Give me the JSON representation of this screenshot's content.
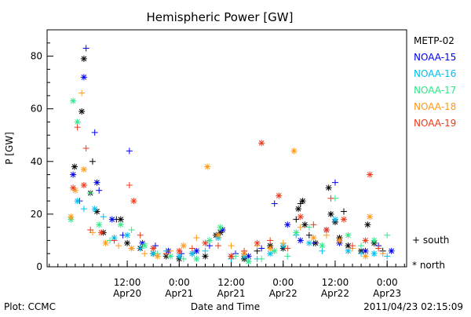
{
  "chart_data": {
    "type": "scatter",
    "title": "Hemispheric Power [GW]",
    "xlabel": "Date and Time",
    "ylabel": "P [GW]",
    "xlim": [
      "2011-04-19T17:30",
      "2011-04-23T04:30"
    ],
    "ylim": [
      0,
      90
    ],
    "y_ticks": [
      0,
      20,
      40,
      60,
      80
    ],
    "x_ticks": [
      {
        "t": "2011-04-20T12:00",
        "time": "12:00",
        "date": "Apr20"
      },
      {
        "t": "2011-04-21T00:00",
        "time": "0:00",
        "date": "Apr21"
      },
      {
        "t": "2011-04-21T12:00",
        "time": "12:00",
        "date": "Apr21"
      },
      {
        "t": "2011-04-22T00:00",
        "time": "0:00",
        "date": "Apr22"
      },
      {
        "t": "2011-04-22T12:00",
        "time": "12:00",
        "date": "Apr22"
      },
      {
        "t": "2011-04-23T00:00",
        "time": "0:00",
        "date": "Apr23"
      }
    ],
    "grid": false,
    "legend_position": "right",
    "marker_legend": {
      "south": "+ south",
      "north": "* north"
    },
    "series": [
      {
        "name": "METP-02",
        "color": "#000000",
        "points": [
          [
            "2011-04-20T02:00",
            79,
            "north"
          ],
          [
            "2011-04-20T01:30",
            59,
            "north"
          ],
          [
            "2011-04-19T23:50",
            38,
            "north"
          ],
          [
            "2011-04-20T04:00",
            40,
            "south"
          ],
          [
            "2011-04-20T03:30",
            28,
            "north"
          ],
          [
            "2011-04-20T05:00",
            21,
            "north"
          ],
          [
            "2011-04-20T06:30",
            13,
            "north"
          ],
          [
            "2011-04-20T09:30",
            18,
            "south"
          ],
          [
            "2011-04-20T10:30",
            18,
            "north"
          ],
          [
            "2011-04-20T12:00",
            9,
            "north"
          ],
          [
            "2011-04-20T15:00",
            7,
            "north"
          ],
          [
            "2011-04-20T18:00",
            5,
            "north"
          ],
          [
            "2011-04-20T21:00",
            4,
            "north"
          ],
          [
            "2011-04-21T00:00",
            3,
            "north"
          ],
          [
            "2011-04-21T03:00",
            5,
            "south"
          ],
          [
            "2011-04-21T06:00",
            4,
            "north"
          ],
          [
            "2011-04-21T08:30",
            12,
            "north"
          ],
          [
            "2011-04-21T09:30",
            13,
            "north"
          ],
          [
            "2011-04-21T10:00",
            14,
            "south"
          ],
          [
            "2011-04-21T12:00",
            4,
            "north"
          ],
          [
            "2011-04-21T15:00",
            3,
            "north"
          ],
          [
            "2011-04-21T18:00",
            6,
            "south"
          ],
          [
            "2011-04-21T21:00",
            8,
            "north"
          ],
          [
            "2011-04-22T00:00",
            7,
            "north"
          ],
          [
            "2011-04-22T03:00",
            18,
            "south"
          ],
          [
            "2011-04-22T03:30",
            22,
            "north"
          ],
          [
            "2011-04-22T04:00",
            24,
            "south"
          ],
          [
            "2011-04-22T04:30",
            25,
            "north"
          ],
          [
            "2011-04-22T05:00",
            16,
            "north"
          ],
          [
            "2011-04-22T06:00",
            12,
            "south"
          ],
          [
            "2011-04-22T07:30",
            9,
            "north"
          ],
          [
            "2011-04-22T10:30",
            30,
            "north"
          ],
          [
            "2011-04-22T11:00",
            20,
            "north"
          ],
          [
            "2011-04-22T12:00",
            17,
            "north"
          ],
          [
            "2011-04-22T14:00",
            21,
            "south"
          ],
          [
            "2011-04-22T13:00",
            11,
            "north"
          ],
          [
            "2011-04-22T15:00",
            8,
            "north"
          ],
          [
            "2011-04-22T18:00",
            6,
            "north"
          ],
          [
            "2011-04-22T19:30",
            16,
            "north"
          ],
          [
            "2011-04-22T21:00",
            9,
            "north"
          ],
          [
            "2011-04-22T23:00",
            6,
            "south"
          ]
        ]
      },
      {
        "name": "NOAA-15",
        "color": "#0000ee",
        "points": [
          [
            "2011-04-20T02:30",
            83,
            "south"
          ],
          [
            "2011-04-20T02:00",
            72,
            "north"
          ],
          [
            "2011-04-19T23:30",
            35,
            "north"
          ],
          [
            "2011-04-20T01:00",
            25,
            "south"
          ],
          [
            "2011-04-20T04:30",
            51,
            "south"
          ],
          [
            "2011-04-20T05:00",
            32,
            "north"
          ],
          [
            "2011-04-20T05:30",
            29,
            "south"
          ],
          [
            "2011-04-20T08:30",
            18,
            "north"
          ],
          [
            "2011-04-20T12:30",
            44,
            "south"
          ],
          [
            "2011-04-20T11:00",
            12,
            "south"
          ],
          [
            "2011-04-20T15:30",
            9,
            "north"
          ],
          [
            "2011-04-20T18:30",
            8,
            "south"
          ],
          [
            "2011-04-20T21:30",
            6,
            "north"
          ],
          [
            "2011-04-21T00:30",
            5,
            "south"
          ],
          [
            "2011-04-21T04:00",
            6,
            "north"
          ],
          [
            "2011-04-21T07:00",
            8,
            "south"
          ],
          [
            "2011-04-21T10:00",
            14,
            "north"
          ],
          [
            "2011-04-21T13:00",
            5,
            "south"
          ],
          [
            "2011-04-21T16:00",
            4,
            "north"
          ],
          [
            "2011-04-21T19:00",
            7,
            "south"
          ],
          [
            "2011-04-21T22:00",
            24,
            "south"
          ],
          [
            "2011-04-22T01:00",
            16,
            "north"
          ],
          [
            "2011-04-22T04:00",
            10,
            "north"
          ],
          [
            "2011-04-22T07:00",
            9,
            "south"
          ],
          [
            "2011-04-22T10:00",
            14,
            "north"
          ],
          [
            "2011-04-22T12:00",
            32,
            "south"
          ],
          [
            "2011-04-22T13:00",
            9,
            "north"
          ],
          [
            "2011-04-22T16:00",
            7,
            "south"
          ],
          [
            "2011-04-22T19:00",
            6,
            "north"
          ],
          [
            "2011-04-22T22:00",
            8,
            "south"
          ],
          [
            "2011-04-23T01:00",
            6,
            "north"
          ]
        ]
      },
      {
        "name": "NOAA-16",
        "color": "#00bfef",
        "points": [
          [
            "2011-04-20T00:30",
            25,
            "north"
          ],
          [
            "2011-04-20T02:00",
            22,
            "south"
          ],
          [
            "2011-04-20T04:30",
            22,
            "north"
          ],
          [
            "2011-04-20T06:30",
            19,
            "south"
          ],
          [
            "2011-04-20T09:00",
            11,
            "north"
          ],
          [
            "2011-04-20T12:00",
            12,
            "north"
          ],
          [
            "2011-04-20T15:00",
            7,
            "south"
          ],
          [
            "2011-04-20T18:00",
            5,
            "north"
          ],
          [
            "2011-04-20T21:00",
            6,
            "south"
          ],
          [
            "2011-04-21T00:00",
            4,
            "north"
          ],
          [
            "2011-04-21T03:00",
            5,
            "north"
          ],
          [
            "2011-04-21T06:00",
            6,
            "south"
          ],
          [
            "2011-04-21T09:00",
            11,
            "north"
          ],
          [
            "2011-04-21T12:00",
            3,
            "south"
          ],
          [
            "2011-04-21T15:00",
            4,
            "north"
          ],
          [
            "2011-04-21T18:00",
            3,
            "south"
          ],
          [
            "2011-04-21T21:00",
            5,
            "north"
          ],
          [
            "2011-04-22T00:00",
            8,
            "north"
          ],
          [
            "2011-04-22T03:00",
            12,
            "south"
          ],
          [
            "2011-04-22T06:00",
            9,
            "north"
          ],
          [
            "2011-04-22T09:00",
            6,
            "south"
          ],
          [
            "2011-04-22T12:00",
            18,
            "north"
          ],
          [
            "2011-04-22T15:00",
            6,
            "north"
          ],
          [
            "2011-04-22T18:00",
            5,
            "south"
          ],
          [
            "2011-04-22T21:00",
            5,
            "north"
          ],
          [
            "2011-04-23T00:00",
            4,
            "south"
          ]
        ]
      },
      {
        "name": "NOAA-17",
        "color": "#2ee88a",
        "points": [
          [
            "2011-04-19T23:00",
            18,
            "north"
          ],
          [
            "2011-04-19T23:30",
            63,
            "north"
          ],
          [
            "2011-04-20T00:30",
            55,
            "north"
          ],
          [
            "2011-04-20T03:30",
            28,
            "south"
          ],
          [
            "2011-04-20T05:30",
            16,
            "north"
          ],
          [
            "2011-04-20T08:00",
            10,
            "south"
          ],
          [
            "2011-04-20T10:30",
            16,
            "north"
          ],
          [
            "2011-04-20T13:00",
            14,
            "south"
          ],
          [
            "2011-04-20T16:00",
            8,
            "north"
          ],
          [
            "2011-04-20T19:00",
            5,
            "south"
          ],
          [
            "2011-04-20T22:00",
            4,
            "north"
          ],
          [
            "2011-04-21T01:00",
            3,
            "south"
          ],
          [
            "2011-04-21T04:00",
            3,
            "north"
          ],
          [
            "2011-04-21T07:00",
            10,
            "north"
          ],
          [
            "2011-04-21T09:30",
            15,
            "north"
          ],
          [
            "2011-04-21T13:00",
            4,
            "south"
          ],
          [
            "2011-04-21T16:00",
            2,
            "north"
          ],
          [
            "2011-04-21T19:00",
            3,
            "south"
          ],
          [
            "2011-04-21T22:00",
            6,
            "north"
          ],
          [
            "2011-04-22T01:00",
            4,
            "south"
          ],
          [
            "2011-04-22T03:00",
            13,
            "north"
          ],
          [
            "2011-04-22T06:00",
            15,
            "south"
          ],
          [
            "2011-04-22T09:00",
            8,
            "north"
          ],
          [
            "2011-04-22T12:00",
            26,
            "south"
          ],
          [
            "2011-04-22T15:00",
            12,
            "north"
          ],
          [
            "2011-04-22T18:00",
            8,
            "south"
          ],
          [
            "2011-04-22T21:00",
            10,
            "north"
          ],
          [
            "2011-04-23T00:00",
            12,
            "south"
          ]
        ]
      },
      {
        "name": "NOAA-18",
        "color": "#ff9a1a",
        "points": [
          [
            "2011-04-19T23:00",
            19,
            "north"
          ],
          [
            "2011-04-20T00:00",
            29,
            "north"
          ],
          [
            "2011-04-20T01:30",
            66,
            "south"
          ],
          [
            "2011-04-20T02:00",
            37,
            "north"
          ],
          [
            "2011-04-20T04:00",
            13,
            "south"
          ],
          [
            "2011-04-20T07:00",
            9,
            "north"
          ],
          [
            "2011-04-20T10:00",
            8,
            "south"
          ],
          [
            "2011-04-20T13:00",
            7,
            "north"
          ],
          [
            "2011-04-20T16:00",
            5,
            "south"
          ],
          [
            "2011-04-20T19:00",
            4,
            "north"
          ],
          [
            "2011-04-20T22:00",
            6,
            "south"
          ],
          [
            "2011-04-21T01:00",
            8,
            "north"
          ],
          [
            "2011-04-21T04:00",
            11,
            "south"
          ],
          [
            "2011-04-21T06:30",
            38,
            "north"
          ],
          [
            "2011-04-21T09:00",
            12,
            "north"
          ],
          [
            "2011-04-21T12:00",
            8,
            "south"
          ],
          [
            "2011-04-21T15:00",
            5,
            "north"
          ],
          [
            "2011-04-21T18:00",
            8,
            "south"
          ],
          [
            "2011-04-21T21:00",
            7,
            "north"
          ],
          [
            "2011-04-22T00:00",
            9,
            "south"
          ],
          [
            "2011-04-22T02:30",
            44,
            "north"
          ],
          [
            "2011-04-22T04:00",
            15,
            "south"
          ],
          [
            "2011-04-22T07:00",
            11,
            "north"
          ],
          [
            "2011-04-22T10:00",
            12,
            "south"
          ],
          [
            "2011-04-22T13:00",
            10,
            "north"
          ],
          [
            "2011-04-22T16:00",
            7,
            "south"
          ],
          [
            "2011-04-22T19:00",
            4,
            "north"
          ],
          [
            "2011-04-22T20:00",
            19,
            "north"
          ],
          [
            "2011-04-22T23:00",
            5,
            "south"
          ]
        ]
      },
      {
        "name": "NOAA-19",
        "color": "#ee3a1a",
        "points": [
          [
            "2011-04-19T23:30",
            30,
            "north"
          ],
          [
            "2011-04-20T00:30",
            53,
            "south"
          ],
          [
            "2011-04-20T02:30",
            45,
            "south"
          ],
          [
            "2011-04-20T02:00",
            31,
            "north"
          ],
          [
            "2011-04-20T03:30",
            14,
            "south"
          ],
          [
            "2011-04-20T06:00",
            13,
            "north"
          ],
          [
            "2011-04-20T09:00",
            10,
            "south"
          ],
          [
            "2011-04-20T12:30",
            31,
            "south"
          ],
          [
            "2011-04-20T13:30",
            25,
            "north"
          ],
          [
            "2011-04-20T15:00",
            12,
            "south"
          ],
          [
            "2011-04-20T18:00",
            7,
            "north"
          ],
          [
            "2011-04-20T21:00",
            5,
            "south"
          ],
          [
            "2011-04-21T00:00",
            6,
            "north"
          ],
          [
            "2011-04-21T03:00",
            7,
            "south"
          ],
          [
            "2011-04-21T06:00",
            9,
            "north"
          ],
          [
            "2011-04-21T09:00",
            8,
            "south"
          ],
          [
            "2011-04-21T12:00",
            4,
            "north"
          ],
          [
            "2011-04-21T15:00",
            6,
            "south"
          ],
          [
            "2011-04-21T18:00",
            9,
            "north"
          ],
          [
            "2011-04-21T19:00",
            47,
            "north"
          ],
          [
            "2011-04-21T21:00",
            10,
            "south"
          ],
          [
            "2011-04-21T23:00",
            27,
            "north"
          ],
          [
            "2011-04-22T01:00",
            7,
            "south"
          ],
          [
            "2011-04-22T04:00",
            19,
            "north"
          ],
          [
            "2011-04-22T07:00",
            16,
            "south"
          ],
          [
            "2011-04-22T10:00",
            14,
            "north"
          ],
          [
            "2011-04-22T11:00",
            26,
            "south"
          ],
          [
            "2011-04-22T14:00",
            18,
            "north"
          ],
          [
            "2011-04-22T16:00",
            8,
            "south"
          ],
          [
            "2011-04-22T19:00",
            10,
            "north"
          ],
          [
            "2011-04-22T20:00",
            35,
            "north"
          ],
          [
            "2011-04-22T22:00",
            7,
            "south"
          ]
        ]
      }
    ]
  },
  "footer": {
    "plot_credit": "Plot: CCMC",
    "timestamp": "2011/04/23 02:15:09"
  }
}
